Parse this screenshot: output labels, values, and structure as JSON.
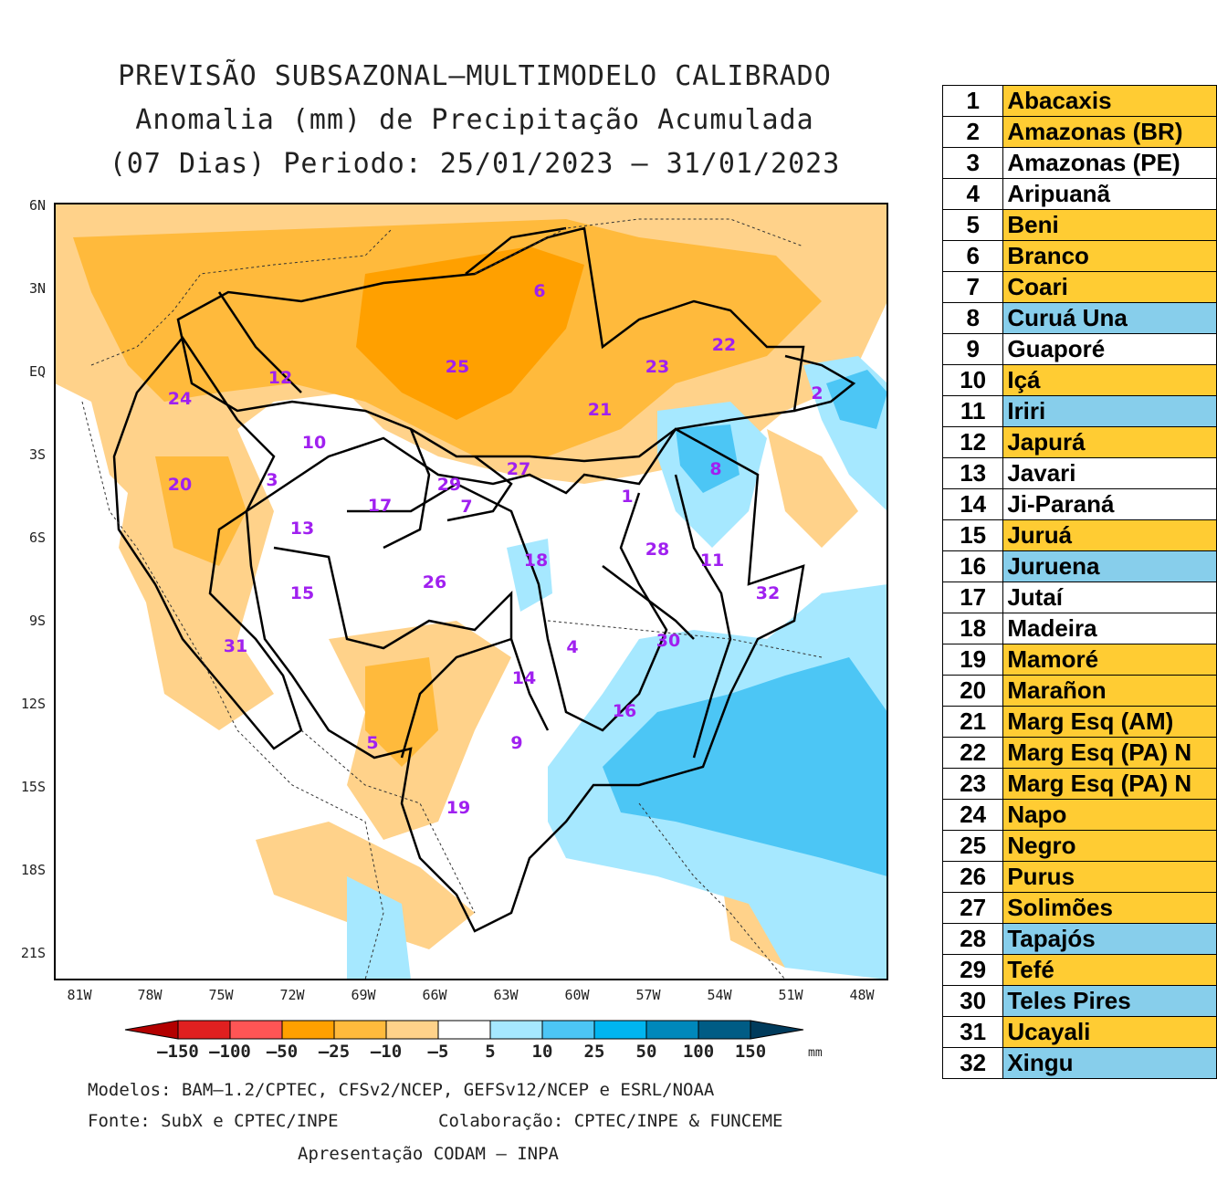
{
  "title": {
    "line1": "PREVISÃO SUBSAZONAL–MULTIMODELO CALIBRADO",
    "line2": "Anomalia (mm) de Precipitação Acumulada",
    "line3": "(07 Dias) Periodo: 25/01/2023 – 31/01/2023"
  },
  "axes": {
    "lat_labels": [
      "6N",
      "3N",
      "EQ",
      "3S",
      "6S",
      "9S",
      "12S",
      "15S",
      "18S",
      "21S"
    ],
    "lon_labels": [
      "81W",
      "78W",
      "75W",
      "72W",
      "69W",
      "66W",
      "63W",
      "60W",
      "57W",
      "54W",
      "51W",
      "48W"
    ]
  },
  "colorbar": {
    "labels": [
      "–150",
      "–100",
      "–50",
      "–25",
      "–10",
      "–5",
      "5",
      "10",
      "25",
      "50",
      "100",
      "150"
    ],
    "unit": "mm",
    "colors": [
      "#b30000",
      "#e02020",
      "#ff5555",
      "#ffa000",
      "#ffba3c",
      "#ffd28a",
      "#ffffff",
      "#a6e8ff",
      "#4cc6f5",
      "#00b5f0",
      "#0088bb",
      "#005c85",
      "#003b5c"
    ]
  },
  "basin_labels": [
    {
      "id": "1"
    },
    {
      "id": "2"
    },
    {
      "id": "3"
    },
    {
      "id": "4"
    },
    {
      "id": "5"
    },
    {
      "id": "6"
    },
    {
      "id": "7"
    },
    {
      "id": "8"
    },
    {
      "id": "9"
    },
    {
      "id": "10"
    },
    {
      "id": "11"
    },
    {
      "id": "12"
    },
    {
      "id": "13"
    },
    {
      "id": "14"
    },
    {
      "id": "15"
    },
    {
      "id": "16"
    },
    {
      "id": "17"
    },
    {
      "id": "18"
    },
    {
      "id": "19"
    },
    {
      "id": "20"
    },
    {
      "id": "21"
    },
    {
      "id": "22"
    },
    {
      "id": "23"
    },
    {
      "id": "24"
    },
    {
      "id": "25"
    },
    {
      "id": "26"
    },
    {
      "id": "27"
    },
    {
      "id": "28"
    },
    {
      "id": "29"
    },
    {
      "id": "30"
    },
    {
      "id": "31"
    },
    {
      "id": "32"
    }
  ],
  "footer": {
    "models": "Modelos: BAM–1.2/CPTEC, CFSv2/NCEP, GEFSv12/NCEP e ESRL/NOAA",
    "source": "Fonte: SubX e CPTEC/INPE",
    "collab": "Colaboração: CPTEC/INPE & FUNCEME",
    "presentation": "Apresentação CODAM – INPA"
  },
  "table": [
    {
      "num": "1",
      "name": "Abacaxis",
      "status": "yellow"
    },
    {
      "num": "2",
      "name": "Amazonas (BR)",
      "status": "yellow"
    },
    {
      "num": "3",
      "name": "Amazonas (PE)",
      "status": "white"
    },
    {
      "num": "4",
      "name": "Aripuanã",
      "status": "white"
    },
    {
      "num": "5",
      "name": "Beni",
      "status": "yellow"
    },
    {
      "num": "6",
      "name": "Branco",
      "status": "yellow"
    },
    {
      "num": "7",
      "name": "Coari",
      "status": "yellow"
    },
    {
      "num": "8",
      "name": "Curuá Una",
      "status": "blue"
    },
    {
      "num": "9",
      "name": "Guaporé",
      "status": "white"
    },
    {
      "num": "10",
      "name": "Içá",
      "status": "yellow"
    },
    {
      "num": "11",
      "name": "Iriri",
      "status": "blue"
    },
    {
      "num": "12",
      "name": "Japurá",
      "status": "yellow"
    },
    {
      "num": "13",
      "name": "Javari",
      "status": "white"
    },
    {
      "num": "14",
      "name": "Ji-Paraná",
      "status": "white"
    },
    {
      "num": "15",
      "name": "Juruá",
      "status": "yellow"
    },
    {
      "num": "16",
      "name": "Juruena",
      "status": "blue"
    },
    {
      "num": "17",
      "name": "Jutaí",
      "status": "white"
    },
    {
      "num": "18",
      "name": "Madeira",
      "status": "white"
    },
    {
      "num": "19",
      "name": "Mamoré",
      "status": "yellow"
    },
    {
      "num": "20",
      "name": "Marañon",
      "status": "yellow"
    },
    {
      "num": "21",
      "name": "Marg Esq (AM)",
      "status": "yellow"
    },
    {
      "num": "22",
      "name": "Marg Esq (PA) N",
      "status": "yellow"
    },
    {
      "num": "23",
      "name": "Marg Esq (PA) N",
      "status": "yellow"
    },
    {
      "num": "24",
      "name": "Napo",
      "status": "yellow"
    },
    {
      "num": "25",
      "name": "Negro",
      "status": "yellow"
    },
    {
      "num": "26",
      "name": "Purus",
      "status": "yellow"
    },
    {
      "num": "27",
      "name": "Solimões",
      "status": "yellow"
    },
    {
      "num": "28",
      "name": "Tapajós",
      "status": "blue"
    },
    {
      "num": "29",
      "name": "Tefé",
      "status": "yellow"
    },
    {
      "num": "30",
      "name": "Teles Pires",
      "status": "blue"
    },
    {
      "num": "31",
      "name": "Ucayali",
      "status": "yellow"
    },
    {
      "num": "32",
      "name": "Xingu",
      "status": "blue"
    }
  ]
}
